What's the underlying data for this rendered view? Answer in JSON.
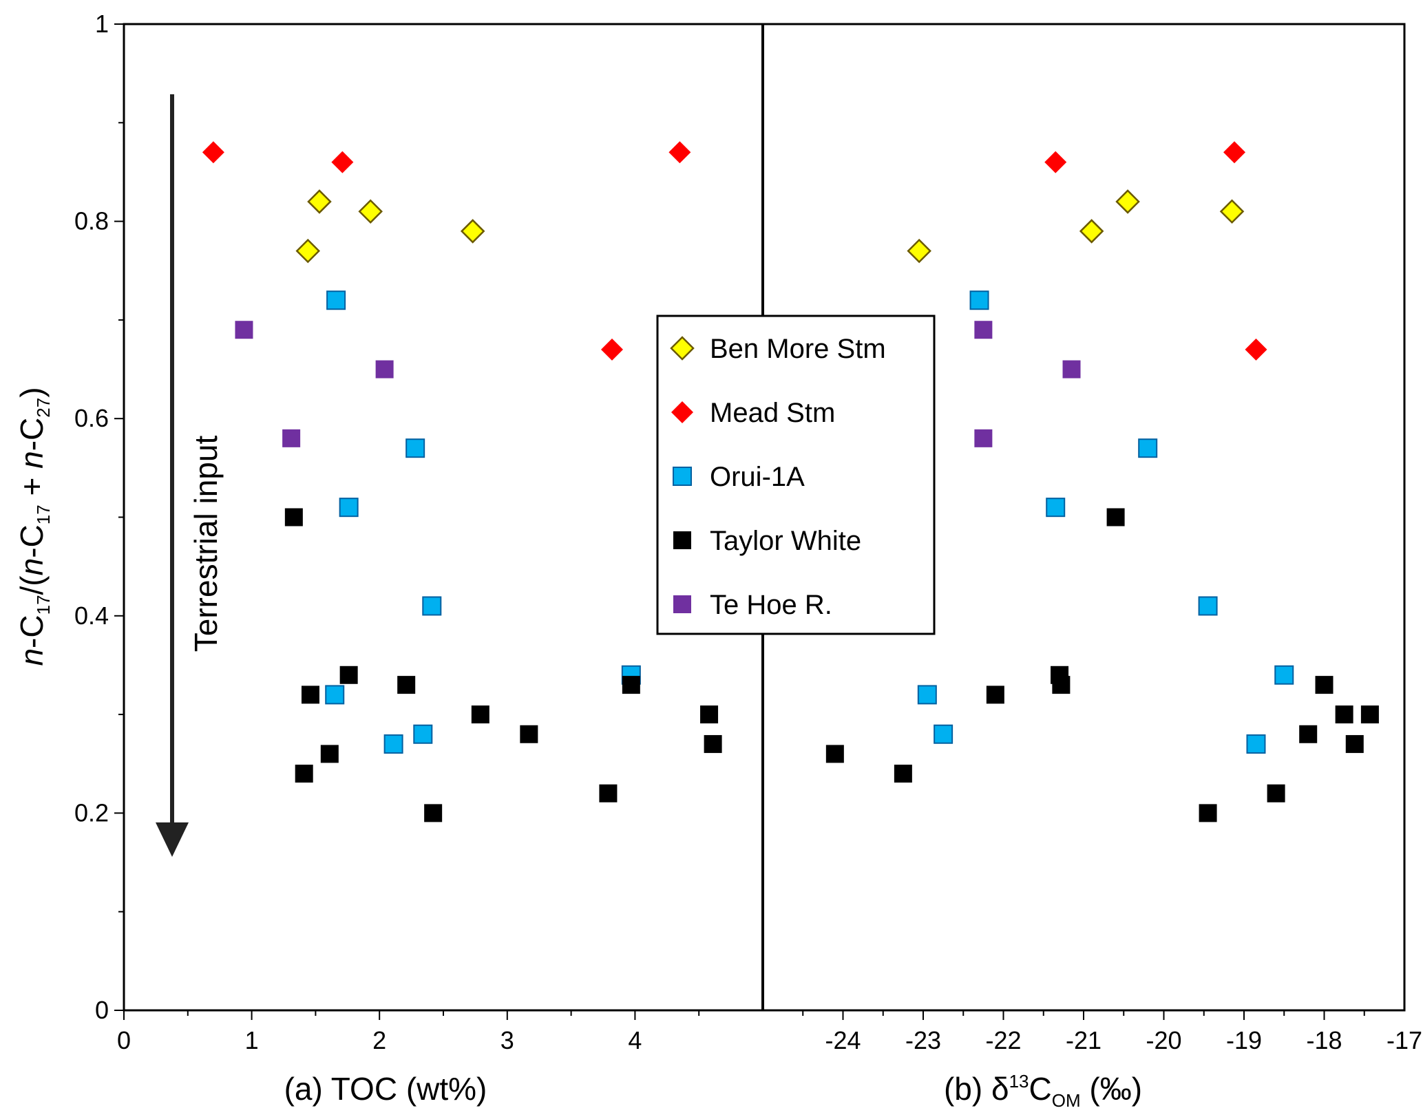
{
  "chart_data": [
    {
      "type": "scatter",
      "panel": "a",
      "xlabel": "(a) TOC (wt%)",
      "ylabel": "n-C17/(n-C17 + n-C27)",
      "xlim": [
        0,
        5
      ],
      "ylim": [
        0,
        1
      ],
      "xticks": [
        "0",
        "1",
        "2",
        "3",
        "4"
      ],
      "yticks": [
        "0",
        "0.2",
        "0.4",
        "0.6",
        "0.8",
        "1"
      ],
      "annotation": "Terrestrial input",
      "series": [
        {
          "name": "Ben More Stm",
          "marker": "diamond",
          "color": "#ffff00",
          "points": [
            [
              1.44,
              0.77
            ],
            [
              1.53,
              0.82
            ],
            [
              1.93,
              0.81
            ],
            [
              2.73,
              0.79
            ]
          ]
        },
        {
          "name": "Mead Stm",
          "marker": "diamond",
          "color": "#ff0000",
          "points": [
            [
              0.7,
              0.87
            ],
            [
              1.71,
              0.86
            ],
            [
              4.35,
              0.87
            ],
            [
              3.82,
              0.67
            ]
          ]
        },
        {
          "name": "Orui-1A",
          "marker": "square",
          "color": "#00b0f0",
          "points": [
            [
              1.66,
              0.72
            ],
            [
              1.76,
              0.51
            ],
            [
              2.28,
              0.57
            ],
            [
              2.41,
              0.41
            ],
            [
              1.65,
              0.32
            ],
            [
              2.11,
              0.27
            ],
            [
              2.34,
              0.28
            ],
            [
              3.97,
              0.34
            ]
          ]
        },
        {
          "name": "Taylor White",
          "marker": "square",
          "color": "#000000",
          "points": [
            [
              1.33,
              0.5
            ],
            [
              1.76,
              0.34
            ],
            [
              1.46,
              0.32
            ],
            [
              2.21,
              0.33
            ],
            [
              1.61,
              0.26
            ],
            [
              1.41,
              0.24
            ],
            [
              2.42,
              0.2
            ],
            [
              2.79,
              0.3
            ],
            [
              3.17,
              0.28
            ],
            [
              3.97,
              0.33
            ],
            [
              3.79,
              0.22
            ],
            [
              4.58,
              0.3
            ],
            [
              4.61,
              0.27
            ]
          ]
        },
        {
          "name": "Te Hoe R.",
          "marker": "square",
          "color": "#7030a0",
          "points": [
            [
              0.94,
              0.69
            ],
            [
              2.04,
              0.65
            ],
            [
              1.31,
              0.58
            ]
          ]
        }
      ]
    },
    {
      "type": "scatter",
      "panel": "b",
      "xlabel": "(b) δ13COM (‰)",
      "xlim": [
        -25,
        -17
      ],
      "ylim": [
        0,
        1
      ],
      "xticks": [
        "-24",
        "-23",
        "-22",
        "-21",
        "-20",
        "-19",
        "-18",
        "-17"
      ],
      "series": [
        {
          "name": "Ben More Stm",
          "marker": "diamond",
          "color": "#ffff00",
          "points": [
            [
              -23.05,
              0.77
            ],
            [
              -20.9,
              0.79
            ],
            [
              -20.45,
              0.82
            ],
            [
              -19.15,
              0.81
            ]
          ]
        },
        {
          "name": "Mead Stm",
          "marker": "diamond",
          "color": "#ff0000",
          "points": [
            [
              -21.35,
              0.86
            ],
            [
              -19.12,
              0.87
            ],
            [
              -18.85,
              0.67
            ]
          ]
        },
        {
          "name": "Orui-1A",
          "marker": "square",
          "color": "#00b0f0",
          "points": [
            [
              -22.3,
              0.72
            ],
            [
              -20.2,
              0.57
            ],
            [
              -21.35,
              0.51
            ],
            [
              -19.45,
              0.41
            ],
            [
              -22.95,
              0.32
            ],
            [
              -22.75,
              0.28
            ],
            [
              -18.5,
              0.34
            ],
            [
              -18.85,
              0.27
            ]
          ]
        },
        {
          "name": "Taylor White",
          "marker": "square",
          "color": "#000000",
          "points": [
            [
              -20.6,
              0.5
            ],
            [
              -21.3,
              0.34
            ],
            [
              -21.28,
              0.33
            ],
            [
              -22.1,
              0.32
            ],
            [
              -24.1,
              0.26
            ],
            [
              -23.25,
              0.24
            ],
            [
              -19.45,
              0.2
            ],
            [
              -18.6,
              0.22
            ],
            [
              -18.2,
              0.28
            ],
            [
              -18.0,
              0.33
            ],
            [
              -17.75,
              0.3
            ],
            [
              -17.62,
              0.27
            ],
            [
              -17.43,
              0.3
            ]
          ]
        },
        {
          "name": "Te Hoe R.",
          "marker": "square",
          "color": "#7030a0",
          "points": [
            [
              -22.25,
              0.69
            ],
            [
              -21.15,
              0.65
            ],
            [
              -22.25,
              0.58
            ]
          ]
        }
      ]
    }
  ],
  "legend": {
    "entries": [
      {
        "label": "Ben More Stm",
        "marker": "diamond",
        "color": "#ffff00"
      },
      {
        "label": "Mead Stm",
        "marker": "diamond",
        "color": "#ff0000"
      },
      {
        "label": "Orui-1A",
        "marker": "square",
        "color": "#00b0f0"
      },
      {
        "label": "Taylor White",
        "marker": "square",
        "color": "#000000"
      },
      {
        "label": "Te Hoe R.",
        "marker": "square",
        "color": "#7030a0"
      }
    ]
  }
}
